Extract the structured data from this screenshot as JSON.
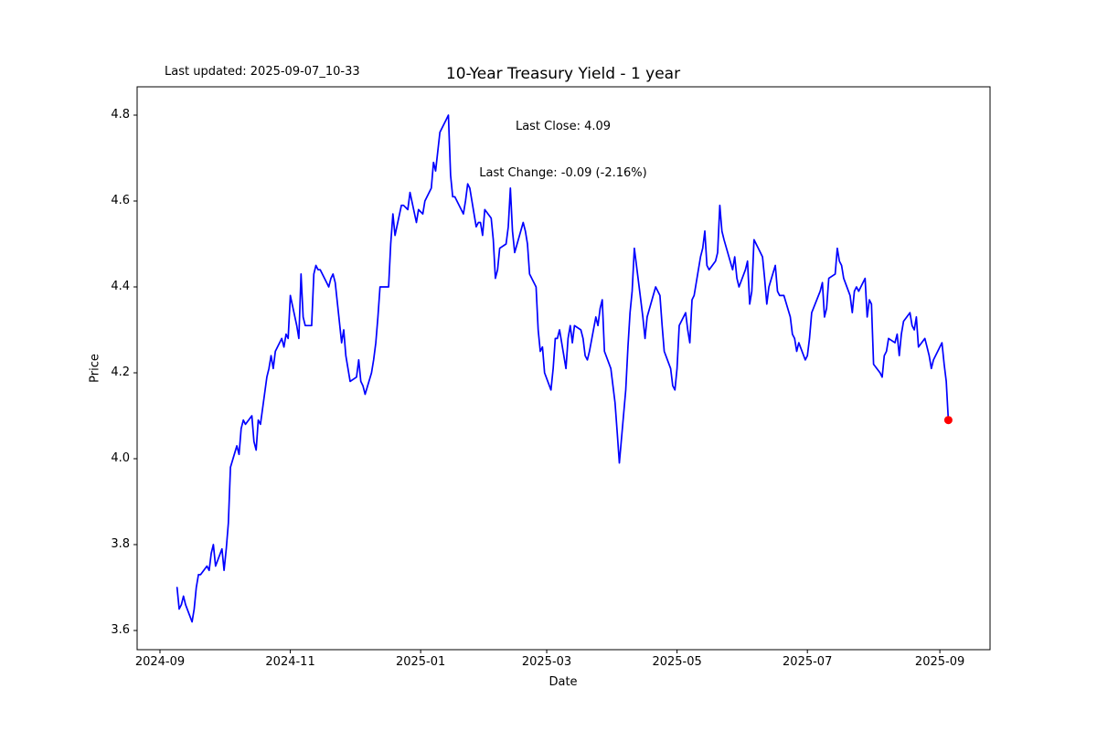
{
  "window": {
    "background": "#ffffff"
  },
  "header": {
    "last_updated": "Last updated: 2025-09-07_10-33"
  },
  "chart_data": {
    "type": "line",
    "title": "10-Year Treasury Yield - 1 year",
    "xlabel": "Date",
    "ylabel": "Price",
    "annotation": {
      "line1": "Last Close: 4.09",
      "line2": "Last Change: -0.09 (-2.16%)"
    },
    "line_color": "#0000ff",
    "marker_color": "#ff0000",
    "background_color": "#ffffff",
    "spine_color": "#000000",
    "grid": false,
    "legend": "none",
    "ylim": [
      3.56,
      4.87
    ],
    "xlim_dates": [
      "2024-08-21",
      "2025-09-24"
    ],
    "y_ticks": [
      {
        "label": "3.6",
        "value": 3.6
      },
      {
        "label": "3.8",
        "value": 3.8
      },
      {
        "label": "4.0",
        "value": 4.0
      },
      {
        "label": "4.2",
        "value": 4.2
      },
      {
        "label": "4.4",
        "value": 4.4
      },
      {
        "label": "4.6",
        "value": 4.6
      },
      {
        "label": "4.8",
        "value": 4.8
      }
    ],
    "x_ticks": [
      {
        "label": "2024-09",
        "date": "2024-09-01"
      },
      {
        "label": "2024-11",
        "date": "2024-11-01"
      },
      {
        "label": "2025-01",
        "date": "2025-01-01"
      },
      {
        "label": "2025-03",
        "date": "2025-03-01"
      },
      {
        "label": "2025-05",
        "date": "2025-05-01"
      },
      {
        "label": "2025-07",
        "date": "2025-07-01"
      },
      {
        "label": "2025-09",
        "date": "2025-09-01"
      }
    ],
    "series": [
      {
        "name": "10-Year Treasury Yield",
        "dates": [
          "2024-09-09",
          "2024-09-10",
          "2024-09-11",
          "2024-09-12",
          "2024-09-13",
          "2024-09-16",
          "2024-09-17",
          "2024-09-18",
          "2024-09-19",
          "2024-09-20",
          "2024-09-23",
          "2024-09-24",
          "2024-09-25",
          "2024-09-26",
          "2024-09-27",
          "2024-09-30",
          "2024-10-01",
          "2024-10-02",
          "2024-10-03",
          "2024-10-04",
          "2024-10-07",
          "2024-10-08",
          "2024-10-09",
          "2024-10-10",
          "2024-10-11",
          "2024-10-14",
          "2024-10-15",
          "2024-10-16",
          "2024-10-17",
          "2024-10-18",
          "2024-10-21",
          "2024-10-22",
          "2024-10-23",
          "2024-10-24",
          "2024-10-25",
          "2024-10-28",
          "2024-10-29",
          "2024-10-30",
          "2024-10-31",
          "2024-11-01",
          "2024-11-04",
          "2024-11-05",
          "2024-11-06",
          "2024-11-07",
          "2024-11-08",
          "2024-11-11",
          "2024-11-12",
          "2024-11-13",
          "2024-11-14",
          "2024-11-15",
          "2024-11-18",
          "2024-11-19",
          "2024-11-20",
          "2024-11-21",
          "2024-11-22",
          "2024-11-25",
          "2024-11-26",
          "2024-11-27",
          "2024-11-29",
          "2024-12-02",
          "2024-12-03",
          "2024-12-04",
          "2024-12-05",
          "2024-12-06",
          "2024-12-09",
          "2024-12-10",
          "2024-12-11",
          "2024-12-12",
          "2024-12-13",
          "2024-12-16",
          "2024-12-17",
          "2024-12-18",
          "2024-12-19",
          "2024-12-20",
          "2024-12-23",
          "2024-12-24",
          "2024-12-26",
          "2024-12-27",
          "2024-12-30",
          "2024-12-31",
          "2025-01-02",
          "2025-01-03",
          "2025-01-06",
          "2025-01-07",
          "2025-01-08",
          "2025-01-10",
          "2025-01-13",
          "2025-01-14",
          "2025-01-15",
          "2025-01-16",
          "2025-01-17",
          "2025-01-21",
          "2025-01-22",
          "2025-01-23",
          "2025-01-24",
          "2025-01-27",
          "2025-01-28",
          "2025-01-29",
          "2025-01-30",
          "2025-01-31",
          "2025-02-03",
          "2025-02-04",
          "2025-02-05",
          "2025-02-06",
          "2025-02-07",
          "2025-02-10",
          "2025-02-11",
          "2025-02-12",
          "2025-02-13",
          "2025-02-14",
          "2025-02-18",
          "2025-02-19",
          "2025-02-20",
          "2025-02-21",
          "2025-02-24",
          "2025-02-25",
          "2025-02-26",
          "2025-02-27",
          "2025-02-28",
          "2025-03-03",
          "2025-03-04",
          "2025-03-05",
          "2025-03-06",
          "2025-03-07",
          "2025-03-10",
          "2025-03-11",
          "2025-03-12",
          "2025-03-13",
          "2025-03-14",
          "2025-03-17",
          "2025-03-18",
          "2025-03-19",
          "2025-03-20",
          "2025-03-21",
          "2025-03-24",
          "2025-03-25",
          "2025-03-26",
          "2025-03-27",
          "2025-03-28",
          "2025-03-31",
          "2025-04-01",
          "2025-04-02",
          "2025-04-03",
          "2025-04-04",
          "2025-04-07",
          "2025-04-08",
          "2025-04-09",
          "2025-04-10",
          "2025-04-11",
          "2025-04-14",
          "2025-04-15",
          "2025-04-16",
          "2025-04-17",
          "2025-04-21",
          "2025-04-22",
          "2025-04-23",
          "2025-04-24",
          "2025-04-25",
          "2025-04-28",
          "2025-04-29",
          "2025-04-30",
          "2025-05-01",
          "2025-05-02",
          "2025-05-05",
          "2025-05-06",
          "2025-05-07",
          "2025-05-08",
          "2025-05-09",
          "2025-05-12",
          "2025-05-13",
          "2025-05-14",
          "2025-05-15",
          "2025-05-16",
          "2025-05-19",
          "2025-05-20",
          "2025-05-21",
          "2025-05-22",
          "2025-05-23",
          "2025-05-27",
          "2025-05-28",
          "2025-05-29",
          "2025-05-30",
          "2025-06-02",
          "2025-06-03",
          "2025-06-04",
          "2025-06-05",
          "2025-06-06",
          "2025-06-09",
          "2025-06-10",
          "2025-06-11",
          "2025-06-12",
          "2025-06-13",
          "2025-06-16",
          "2025-06-17",
          "2025-06-18",
          "2025-06-20",
          "2025-06-23",
          "2025-06-24",
          "2025-06-25",
          "2025-06-26",
          "2025-06-27",
          "2025-06-30",
          "2025-07-01",
          "2025-07-02",
          "2025-07-03",
          "2025-07-07",
          "2025-07-08",
          "2025-07-09",
          "2025-07-10",
          "2025-07-11",
          "2025-07-14",
          "2025-07-15",
          "2025-07-16",
          "2025-07-17",
          "2025-07-18",
          "2025-07-21",
          "2025-07-22",
          "2025-07-23",
          "2025-07-24",
          "2025-07-25",
          "2025-07-28",
          "2025-07-29",
          "2025-07-30",
          "2025-07-31",
          "2025-08-01",
          "2025-08-04",
          "2025-08-05",
          "2025-08-06",
          "2025-08-07",
          "2025-08-08",
          "2025-08-11",
          "2025-08-12",
          "2025-08-13",
          "2025-08-14",
          "2025-08-15",
          "2025-08-18",
          "2025-08-19",
          "2025-08-20",
          "2025-08-21",
          "2025-08-22",
          "2025-08-25",
          "2025-08-26",
          "2025-08-27",
          "2025-08-28",
          "2025-08-29",
          "2025-09-02",
          "2025-09-03",
          "2025-09-04",
          "2025-09-05"
        ],
        "values": [
          3.7,
          3.65,
          3.66,
          3.68,
          3.66,
          3.62,
          3.65,
          3.7,
          3.73,
          3.73,
          3.75,
          3.74,
          3.78,
          3.8,
          3.75,
          3.79,
          3.74,
          3.79,
          3.85,
          3.98,
          4.03,
          4.01,
          4.07,
          4.09,
          4.08,
          4.1,
          4.04,
          4.02,
          4.09,
          4.08,
          4.19,
          4.21,
          4.24,
          4.21,
          4.25,
          4.28,
          4.26,
          4.29,
          4.28,
          4.38,
          4.31,
          4.28,
          4.43,
          4.33,
          4.31,
          4.31,
          4.43,
          4.45,
          4.44,
          4.44,
          4.41,
          4.4,
          4.42,
          4.43,
          4.41,
          4.27,
          4.3,
          4.24,
          4.18,
          4.19,
          4.23,
          4.18,
          4.17,
          4.15,
          4.2,
          4.23,
          4.27,
          4.33,
          4.4,
          4.4,
          4.4,
          4.5,
          4.57,
          4.52,
          4.59,
          4.59,
          4.58,
          4.62,
          4.55,
          4.58,
          4.57,
          4.6,
          4.63,
          4.69,
          4.67,
          4.76,
          4.79,
          4.8,
          4.66,
          4.61,
          4.61,
          4.57,
          4.6,
          4.64,
          4.63,
          4.54,
          4.55,
          4.55,
          4.52,
          4.58,
          4.56,
          4.51,
          4.42,
          4.44,
          4.49,
          4.5,
          4.54,
          4.63,
          4.53,
          4.48,
          4.55,
          4.53,
          4.5,
          4.43,
          4.4,
          4.3,
          4.25,
          4.26,
          4.2,
          4.16,
          4.21,
          4.28,
          4.28,
          4.3,
          4.21,
          4.28,
          4.31,
          4.27,
          4.31,
          4.3,
          4.28,
          4.24,
          4.23,
          4.25,
          4.33,
          4.31,
          4.35,
          4.37,
          4.25,
          4.21,
          4.17,
          4.13,
          4.06,
          3.99,
          4.16,
          4.26,
          4.34,
          4.39,
          4.49,
          4.37,
          4.33,
          4.28,
          4.33,
          4.4,
          4.39,
          4.38,
          4.31,
          4.25,
          4.21,
          4.17,
          4.16,
          4.21,
          4.31,
          4.34,
          4.3,
          4.27,
          4.37,
          4.38,
          4.47,
          4.49,
          4.53,
          4.45,
          4.44,
          4.46,
          4.48,
          4.59,
          4.53,
          4.51,
          4.44,
          4.47,
          4.42,
          4.4,
          4.44,
          4.46,
          4.36,
          4.39,
          4.51,
          4.48,
          4.47,
          4.42,
          4.36,
          4.4,
          4.45,
          4.39,
          4.38,
          4.38,
          4.33,
          4.29,
          4.28,
          4.25,
          4.27,
          4.23,
          4.24,
          4.28,
          4.34,
          4.39,
          4.41,
          4.33,
          4.35,
          4.42,
          4.43,
          4.49,
          4.46,
          4.45,
          4.42,
          4.38,
          4.34,
          4.39,
          4.4,
          4.39,
          4.42,
          4.33,
          4.37,
          4.36,
          4.22,
          4.2,
          4.19,
          4.24,
          4.25,
          4.28,
          4.27,
          4.29,
          4.24,
          4.29,
          4.32,
          4.34,
          4.31,
          4.3,
          4.33,
          4.26,
          4.28,
          4.26,
          4.24,
          4.21,
          4.23,
          4.27,
          4.22,
          4.18,
          4.09
        ]
      }
    ],
    "last_point": {
      "date": "2025-09-05",
      "value": 4.09
    }
  }
}
